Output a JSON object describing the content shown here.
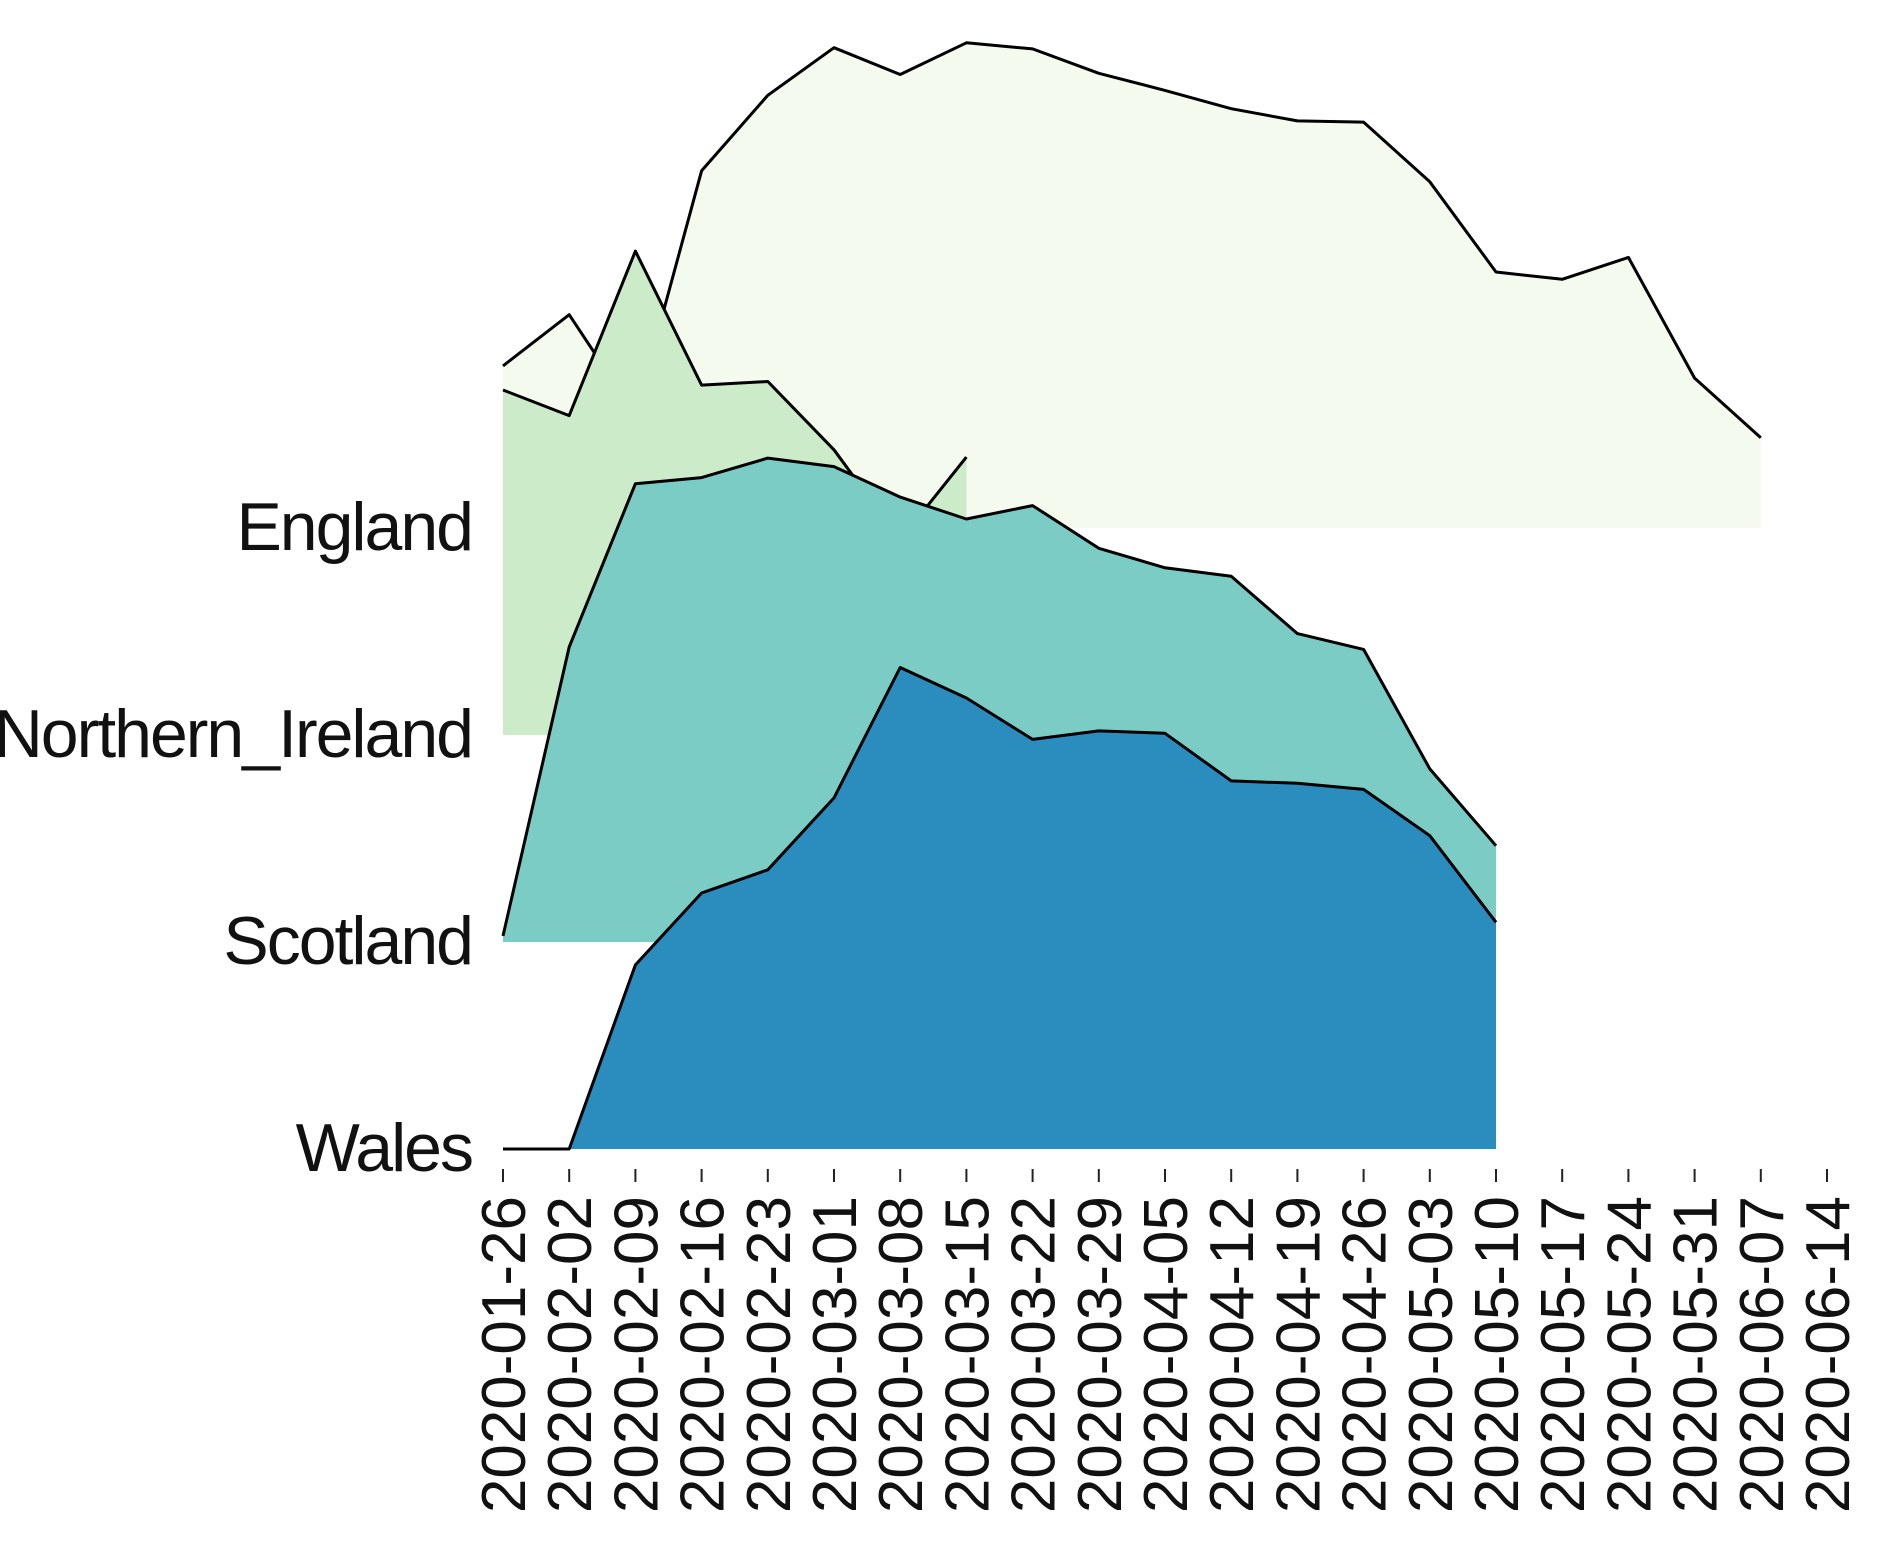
{
  "chart_data": {
    "type": "ridgeline",
    "x": [
      "2020-01-26",
      "2020-02-02",
      "2020-02-09",
      "2020-02-16",
      "2020-02-23",
      "2020-03-01",
      "2020-03-08",
      "2020-03-15",
      "2020-03-22",
      "2020-03-29",
      "2020-04-05",
      "2020-04-12",
      "2020-04-19",
      "2020-04-26",
      "2020-05-03",
      "2020-05-10",
      "2020-05-17",
      "2020-05-24",
      "2020-05-31",
      "2020-06-07",
      "2020-06-14"
    ],
    "ylim": [
      0,
      4
    ],
    "series": [
      {
        "name": "England",
        "color": "#f4faee",
        "values": [
          1.33,
          1.75,
          0.93,
          2.93,
          3.55,
          3.94,
          3.72,
          3.98,
          3.93,
          3.73,
          3.59,
          3.44,
          3.34,
          3.33,
          2.84,
          2.1,
          2.04,
          2.22,
          1.23,
          0.74,
          null
        ]
      },
      {
        "name": "Northern_Ireland",
        "color": "#ccebc8",
        "values": [
          2.83,
          2.62,
          3.97,
          2.87,
          2.9,
          2.34,
          1.6,
          2.28,
          null,
          null,
          null,
          null,
          null,
          null,
          null,
          null,
          null,
          null,
          null,
          null,
          null
        ]
      },
      {
        "name": "Scotland",
        "color": "#7bccc4",
        "values": [
          0.05,
          2.42,
          3.76,
          3.81,
          3.97,
          3.9,
          3.65,
          3.47,
          3.58,
          3.23,
          3.07,
          3.0,
          2.53,
          2.4,
          1.42,
          0.79,
          null,
          null,
          null,
          null,
          null
        ]
      },
      {
        "name": "Wales",
        "color": "#2b8cbe",
        "values": [
          0,
          0,
          1.51,
          2.1,
          2.29,
          2.88,
          3.95,
          3.7,
          3.36,
          3.43,
          3.41,
          3.02,
          3.0,
          2.95,
          2.57,
          1.86,
          null,
          null,
          null,
          null,
          null
        ]
      }
    ]
  }
}
